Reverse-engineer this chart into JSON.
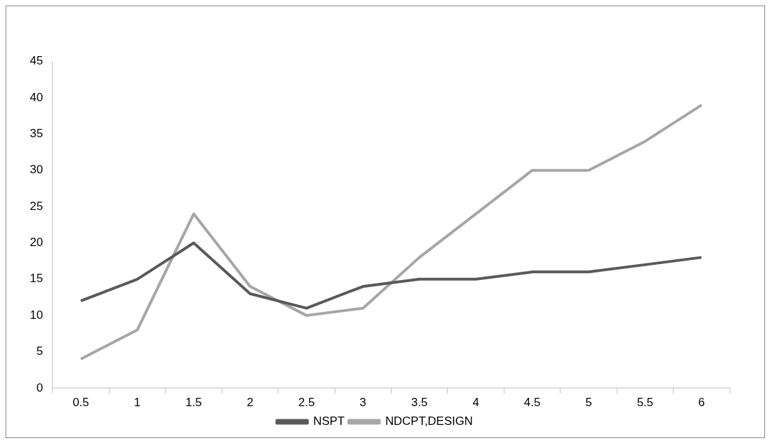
{
  "chart_data": {
    "type": "line",
    "categories": [
      "0.5",
      "1",
      "1.5",
      "2",
      "2.5",
      "3",
      "3.5",
      "4",
      "4.5",
      "5",
      "5.5",
      "6"
    ],
    "series": [
      {
        "name": "NSPT",
        "color": "#595959",
        "values": [
          12,
          15,
          20,
          13,
          11,
          14,
          15,
          15,
          16,
          16,
          17,
          18
        ]
      },
      {
        "name": "NDCPT,DESIGN",
        "color": "#a6a6a6",
        "values": [
          4,
          8,
          24,
          14,
          10,
          11,
          18,
          24,
          30,
          30,
          34,
          39
        ]
      }
    ],
    "ylim": [
      0,
      45
    ],
    "yticks": [
      0,
      5,
      10,
      15,
      20,
      25,
      30,
      35,
      40,
      45
    ],
    "grid": false,
    "legend": "bottom",
    "marker": "none",
    "line_style": "solid"
  }
}
